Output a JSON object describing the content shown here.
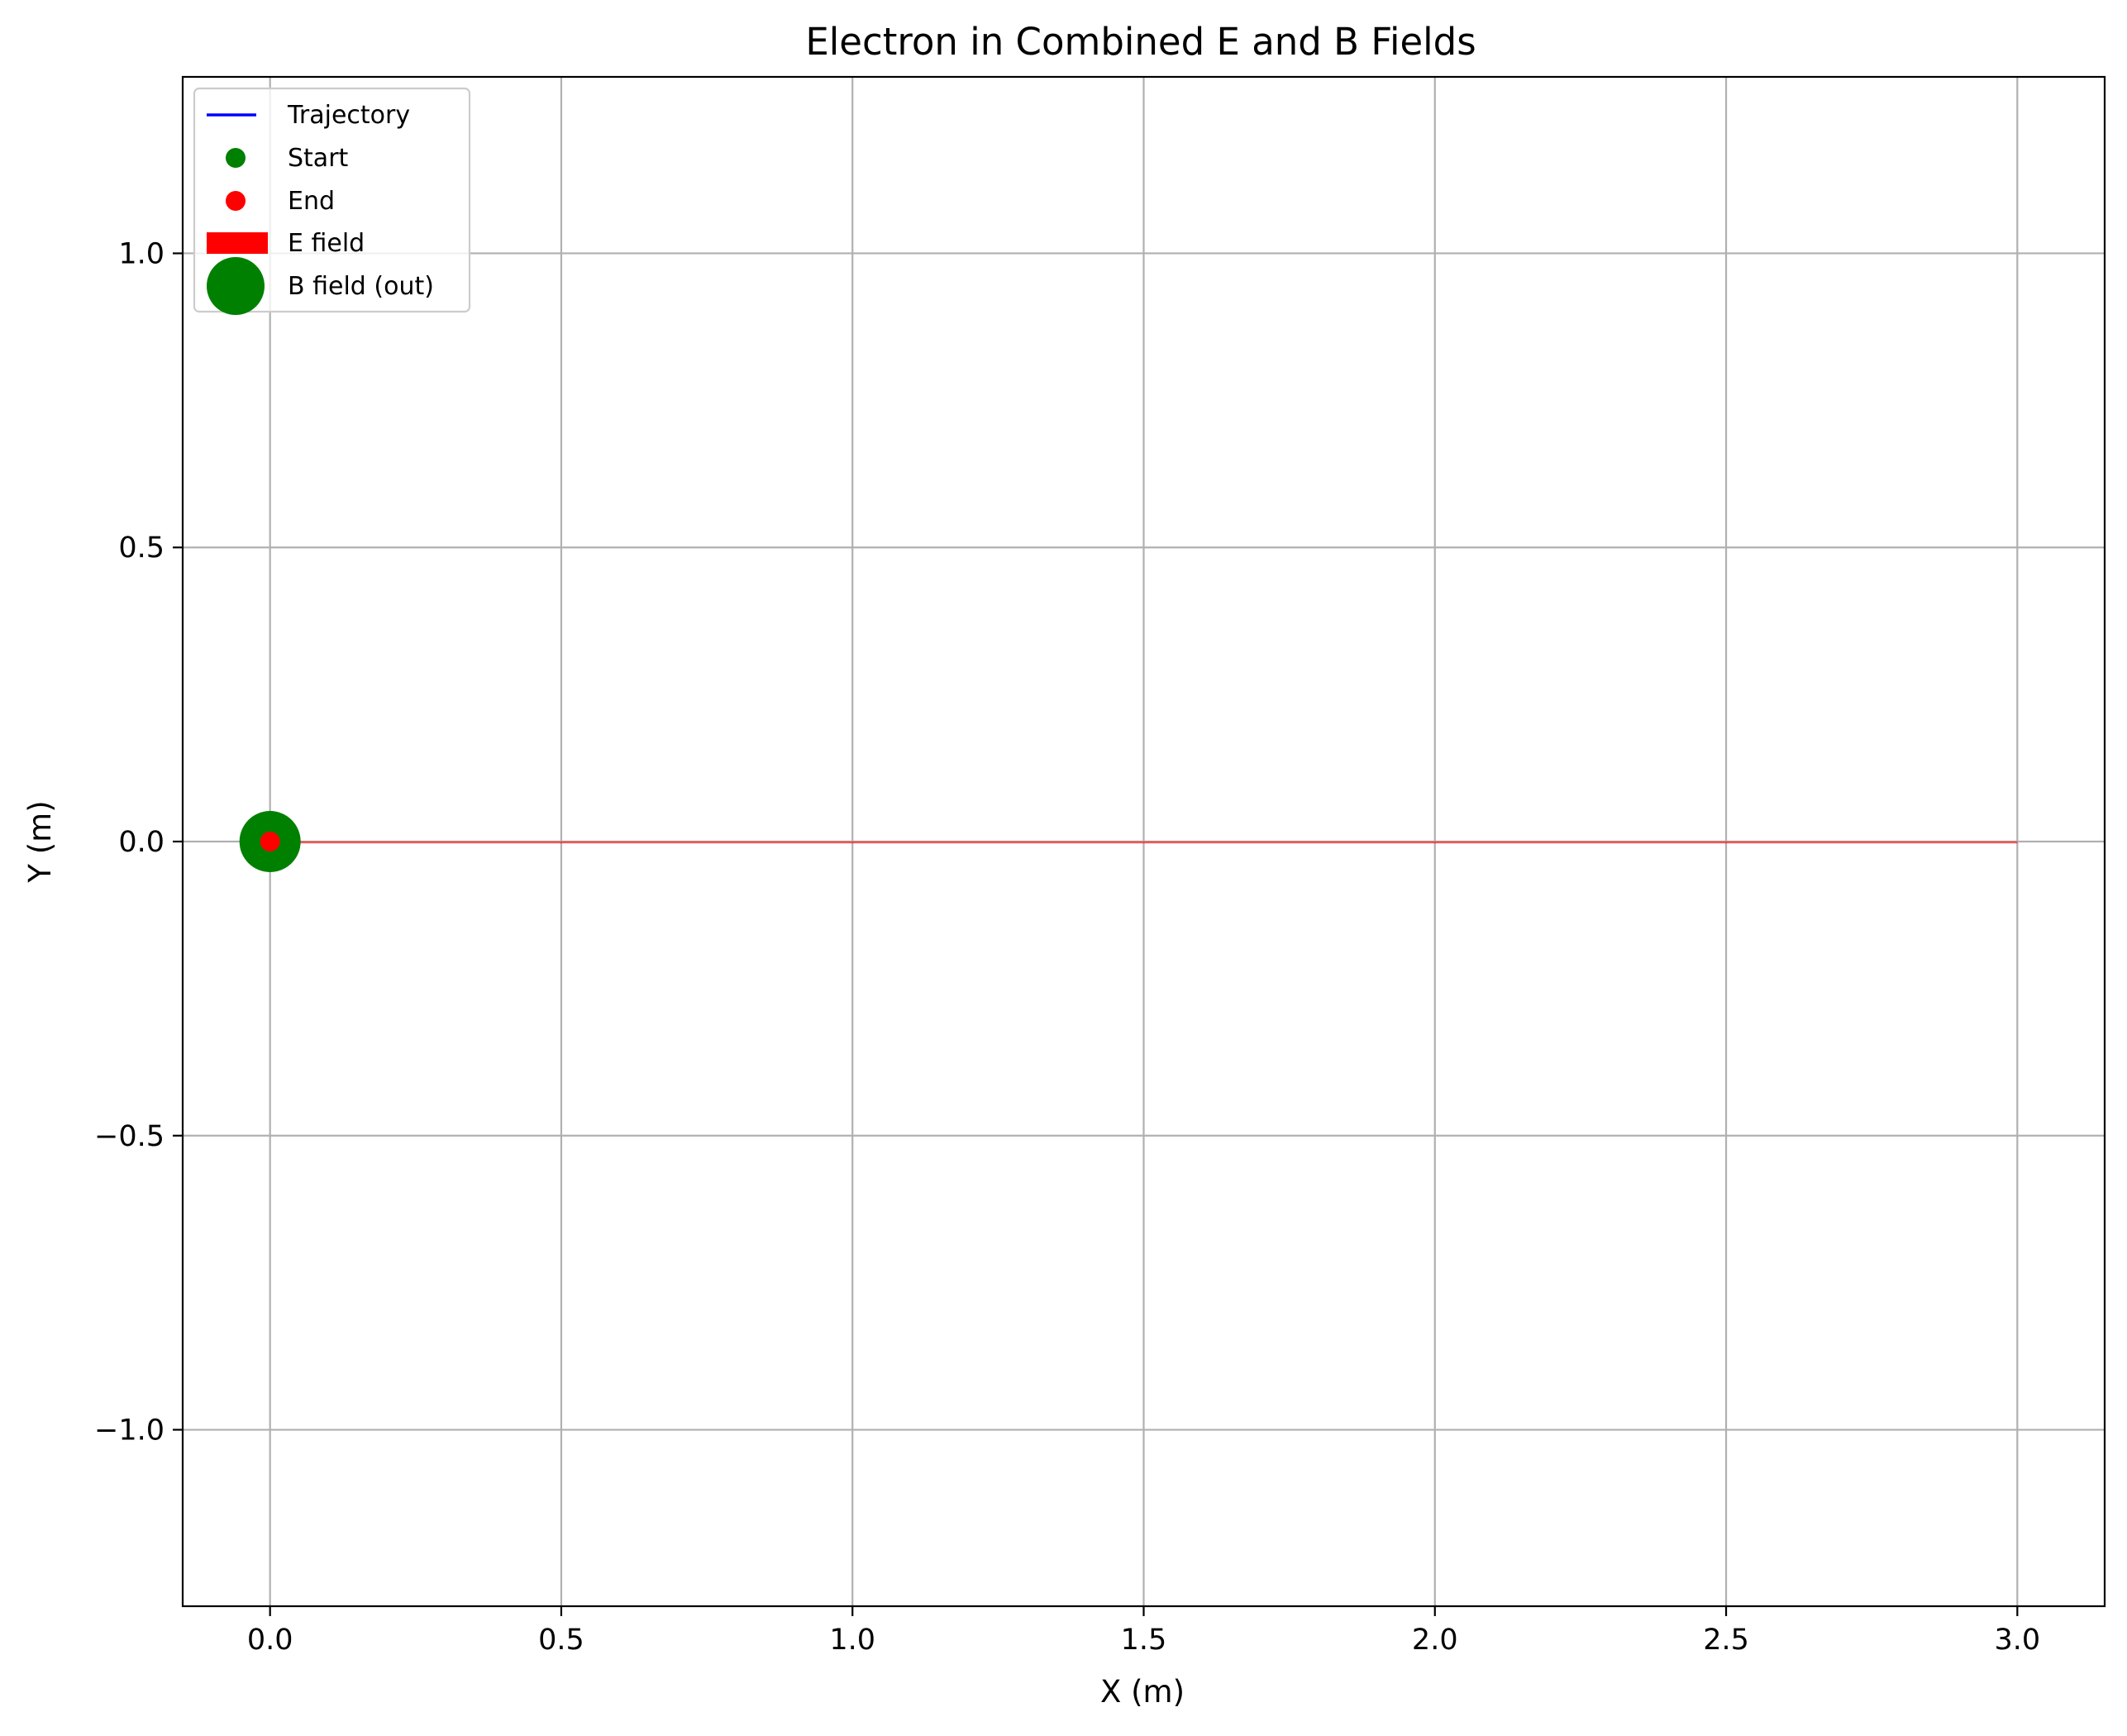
{
  "chart_data": {
    "type": "scatter",
    "title": "Electron in Combined E and B Fields",
    "xlabel": "X (m)",
    "ylabel": "Y (m)",
    "xlim": [
      -0.15,
      3.15
    ],
    "ylim": [
      -1.3,
      1.3
    ],
    "xticks": [
      0.0,
      0.5,
      1.0,
      1.5,
      2.0,
      2.5,
      3.0
    ],
    "xtick_labels": [
      "0.0",
      "0.5",
      "1.0",
      "1.5",
      "2.0",
      "2.5",
      "3.0"
    ],
    "yticks": [
      1.0,
      0.5,
      0.0,
      -0.5,
      -1.0
    ],
    "ytick_labels": [
      "1.0",
      "0.5",
      "0.0",
      "−0.5",
      "−1.0"
    ],
    "grid": true,
    "legend_position": "upper-left",
    "series": [
      {
        "name": "Trajectory",
        "kind": "line",
        "color": "#0000ff",
        "x": [
          0.0,
          0.0
        ],
        "y": [
          0.0,
          0.0
        ]
      },
      {
        "name": "Start",
        "kind": "marker",
        "color": "#008000",
        "x": [
          0.0
        ],
        "y": [
          0.0
        ]
      },
      {
        "name": "End",
        "kind": "marker",
        "color": "#ff0000",
        "x": [
          0.0
        ],
        "y": [
          0.0
        ]
      },
      {
        "name": "E field",
        "kind": "arrow",
        "color": "#ff0000",
        "x": [
          0.0,
          3.0
        ],
        "y": [
          0.0,
          0.0
        ]
      },
      {
        "name": "B field (out)",
        "kind": "marker",
        "color": "#008000",
        "x": [
          0.0
        ],
        "y": [
          0.0
        ]
      }
    ]
  }
}
